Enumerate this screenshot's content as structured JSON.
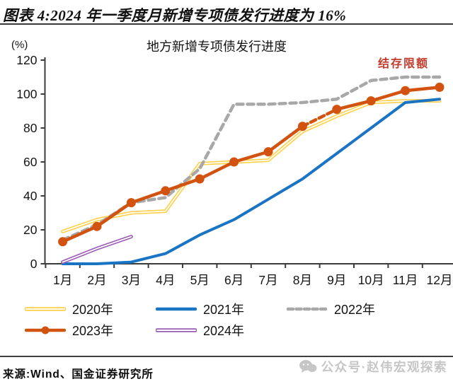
{
  "header": {
    "title": "图表 4:2024 年一季度月新增专项债发行进度为 16%"
  },
  "chart_data": {
    "type": "line",
    "title": "地方新增专项债发行进度",
    "ylabel": "(%)",
    "ylim": [
      0,
      120
    ],
    "ytick_step": 20,
    "grid": false,
    "legend_position": "bottom",
    "categories": [
      "1月",
      "2月",
      "3月",
      "4月",
      "5月",
      "6月",
      "7月",
      "8月",
      "9月",
      "10月",
      "11月",
      "12月"
    ],
    "series": [
      {
        "name": "2020年",
        "color": "#FFD04A",
        "style": "double",
        "values": [
          19,
          26,
          30,
          31,
          59,
          60,
          61,
          78,
          87,
          95,
          96,
          96
        ]
      },
      {
        "name": "2021年",
        "color": "#1A74C4",
        "style": "solid",
        "values": [
          0,
          0,
          1,
          6,
          17,
          26,
          38,
          50,
          65,
          80,
          95,
          97
        ]
      },
      {
        "name": "2022年",
        "color": "#A8A8A8",
        "style": "dashed",
        "values": [
          14,
          23,
          36,
          39,
          56,
          94,
          94,
          95,
          97,
          108,
          110,
          110
        ]
      },
      {
        "name": "2023年",
        "color": "#D2520F",
        "style": "marker",
        "dashed_segment": [
          7,
          8
        ],
        "values": [
          13,
          22,
          36,
          43,
          50,
          60,
          66,
          81,
          91,
          96,
          102,
          104
        ]
      },
      {
        "name": "2024年",
        "color": "#9A5CB4",
        "style": "double",
        "values": [
          1,
          9,
          16,
          null,
          null,
          null,
          null,
          null,
          null,
          null,
          null,
          null
        ]
      }
    ],
    "annotation": {
      "text": "结存限额",
      "color": "#C23B2B"
    }
  },
  "footer": {
    "source": "来源:Wind、国金证券研究所",
    "watermark": "公众号·赵伟宏观探索",
    "watermark_color": "#C6C6C6"
  }
}
